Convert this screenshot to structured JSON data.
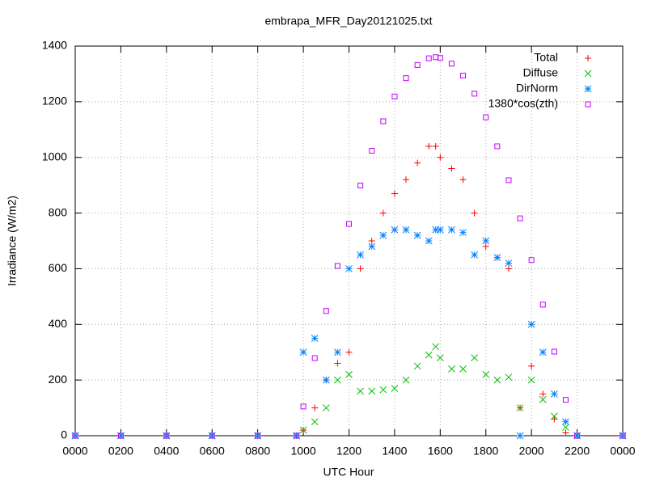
{
  "chart_data": {
    "type": "scatter",
    "title": "embrapa_MFR_Day20121025.txt",
    "x_label": "UTC Hour",
    "y_label": "Irradiance (W/m2)",
    "x": [
      0,
      2,
      4,
      6,
      8,
      9.7,
      10,
      10.5,
      11,
      11.5,
      12,
      12.5,
      13,
      13.5,
      14,
      14.5,
      15,
      15.5,
      15.8,
      16,
      16.5,
      17,
      17.5,
      18,
      18.5,
      19,
      19.5,
      20,
      20.5,
      21,
      21.5,
      22,
      24
    ],
    "series": [
      {
        "name": "Total",
        "color": "#ff0000",
        "marker": "plus",
        "values": [
          0,
          0,
          0,
          0,
          0,
          0,
          20,
          100,
          200,
          260,
          300,
          600,
          700,
          800,
          870,
          920,
          980,
          1040,
          1040,
          1000,
          960,
          920,
          800,
          680,
          640,
          600,
          100,
          250,
          150,
          60,
          10,
          0,
          0
        ]
      },
      {
        "name": "Diffuse",
        "color": "#00c000",
        "marker": "cross",
        "values": [
          0,
          0,
          0,
          0,
          0,
          0,
          20,
          50,
          100,
          200,
          220,
          160,
          160,
          165,
          170,
          200,
          250,
          290,
          320,
          280,
          240,
          240,
          280,
          220,
          200,
          210,
          100,
          200,
          130,
          70,
          30,
          0,
          0
        ]
      },
      {
        "name": "DirNorm",
        "color": "#0080ff",
        "marker": "star",
        "values": [
          0,
          0,
          0,
          0,
          0,
          0,
          300,
          350,
          200,
          300,
          600,
          650,
          680,
          720,
          740,
          740,
          720,
          700,
          740,
          740,
          740,
          730,
          650,
          700,
          640,
          620,
          0,
          400,
          300,
          150,
          50,
          0,
          0
        ]
      },
      {
        "name": "1380*cos(zth)",
        "color": "#c000ff",
        "marker": "square",
        "values": [
          0,
          0,
          0,
          0,
          0,
          0,
          105,
          279,
          448,
          610,
          761,
          899,
          1024,
          1130,
          1219,
          1285,
          1332,
          1356,
          1360,
          1357,
          1337,
          1294,
          1229,
          1144,
          1040,
          918,
          781,
          631,
          471,
          302,
          129,
          0,
          0
        ]
      }
    ],
    "xlim": [
      0,
      24
    ],
    "xticks": [
      {
        "value": 0,
        "label": "0000"
      },
      {
        "value": 2,
        "label": "0200"
      },
      {
        "value": 4,
        "label": "0400"
      },
      {
        "value": 6,
        "label": "0600"
      },
      {
        "value": 8,
        "label": "0800"
      },
      {
        "value": 10,
        "label": "1000"
      },
      {
        "value": 12,
        "label": "1200"
      },
      {
        "value": 14,
        "label": "1400"
      },
      {
        "value": 16,
        "label": "1600"
      },
      {
        "value": 18,
        "label": "1800"
      },
      {
        "value": 20,
        "label": "2000"
      },
      {
        "value": 22,
        "label": "2200"
      },
      {
        "value": 24,
        "label": "0000"
      }
    ],
    "ylim": [
      0,
      1400
    ],
    "yticks": [
      0,
      200,
      400,
      600,
      800,
      1000,
      1200,
      1400
    ],
    "grid": true,
    "legend": "top-right"
  }
}
